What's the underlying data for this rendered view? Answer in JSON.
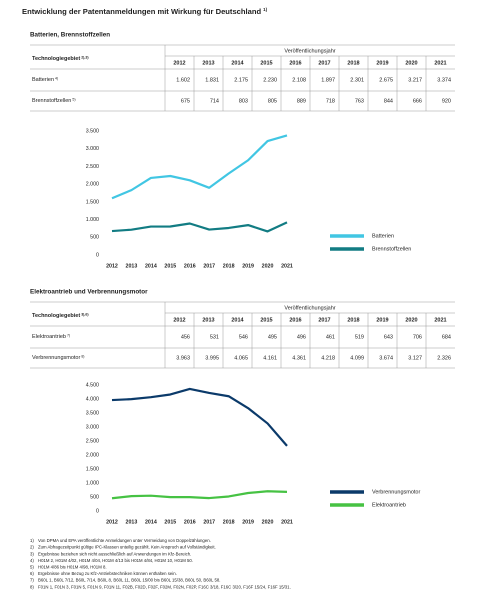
{
  "title": "Entwicklung der Patentanmeldungen mit Wirkung für Deutschland",
  "title_note": "1)",
  "sections": [
    {
      "heading": "Batterien, Brennstoffzellen",
      "table": {
        "label_header": "Technologiegebiet",
        "label_header_note": "2),3)",
        "year_header": "Veröffentlichungsjahr",
        "years": [
          "2012",
          "2013",
          "2014",
          "2015",
          "2016",
          "2017",
          "2018",
          "2019",
          "2020",
          "2021"
        ],
        "rows": [
          {
            "label": "Batterien",
            "note": "4)",
            "cells": [
              "1.602",
              "1.831",
              "2.175",
              "2.230",
              "2.108",
              "1.897",
              "2.301",
              "2.675",
              "3.217",
              "3.374"
            ]
          },
          {
            "label": "Brennstoffzellen",
            "note": "5)",
            "cells": [
              "675",
              "714",
              "803",
              "805",
              "889",
              "718",
              "763",
              "844",
              "666",
              "920"
            ]
          }
        ]
      }
    },
    {
      "heading": "Elektroantrieb und Verbrennungsmotor",
      "table": {
        "label_header": "Technologiegebiet",
        "label_header_note": "3),6)",
        "year_header": "Veröffentlichungsjahr",
        "years": [
          "2012",
          "2013",
          "2014",
          "2015",
          "2016",
          "2017",
          "2018",
          "2019",
          "2020",
          "2021"
        ],
        "rows": [
          {
            "label": "Elektroantrieb",
            "note": "7)",
            "cells": [
              "456",
              "531",
              "546",
              "495",
              "496",
              "461",
              "519",
              "643",
              "706",
              "684"
            ]
          },
          {
            "label": "Verbrennungsmotor",
            "note": "8)",
            "cells": [
              "3.963",
              "3.995",
              "4.065",
              "4.161",
              "4.361",
              "4.218",
              "4.099",
              "3.674",
              "3.127",
              "2.326"
            ]
          }
        ]
      }
    }
  ],
  "chart_data": [
    {
      "type": "line",
      "categories": [
        "2012",
        "2013",
        "2014",
        "2015",
        "2016",
        "2017",
        "2018",
        "2019",
        "2020",
        "2021"
      ],
      "ylim": [
        0,
        3500
      ],
      "yticks": [
        0,
        500,
        {
          "value": 1000,
          "label": "1.000"
        },
        {
          "value": 1500,
          "label": "1.500"
        },
        {
          "value": 2000,
          "label": "2.000"
        },
        {
          "value": 2500,
          "label": "2.500"
        },
        {
          "value": 3000,
          "label": "3.000"
        },
        {
          "value": 3500,
          "label": "3.500"
        }
      ],
      "grid": false,
      "legend": "right",
      "series": [
        {
          "name": "Batterien",
          "color": "#41c6e3",
          "values": [
            1602,
            1831,
            2175,
            2230,
            2108,
            1897,
            2301,
            2675,
            3217,
            3374
          ]
        },
        {
          "name": "Brennstoffzellen",
          "color": "#127c83",
          "values": [
            675,
            714,
            803,
            805,
            889,
            718,
            763,
            844,
            666,
            920
          ]
        }
      ]
    },
    {
      "type": "line",
      "categories": [
        "2012",
        "2013",
        "2014",
        "2015",
        "2016",
        "2017",
        "2018",
        "2019",
        "2020",
        "2021"
      ],
      "ylim": [
        0,
        4500
      ],
      "yticks": [
        0,
        500,
        {
          "value": 1000,
          "label": "1.000"
        },
        {
          "value": 1500,
          "label": "1.500"
        },
        {
          "value": 2000,
          "label": "2.000"
        },
        {
          "value": 2500,
          "label": "2.500"
        },
        {
          "value": 3000,
          "label": "3.000"
        },
        {
          "value": 3500,
          "label": "3.500"
        },
        {
          "value": 4000,
          "label": "4.000"
        },
        {
          "value": 4500,
          "label": "4.500"
        }
      ],
      "grid": false,
      "legend": "right",
      "series": [
        {
          "name": "Verbrennungsmotor",
          "color": "#0b3a6a",
          "values": [
            3963,
            3995,
            4065,
            4161,
            4361,
            4218,
            4099,
            3674,
            3127,
            2326
          ]
        },
        {
          "name": "Elektroantrieb",
          "color": "#46c243",
          "values": [
            456,
            531,
            546,
            495,
            496,
            461,
            519,
            643,
            706,
            684
          ]
        }
      ]
    }
  ],
  "footnotes": [
    {
      "mark": "1)",
      "text": "Von DPMA und EPA veröffentlichte Anmeldungen unter Vermeidung von Doppelzählungen."
    },
    {
      "mark": "2)",
      "text": "Zum Abfragezeitpunkt gültige IPC-Klassen unteilig gezählt. Kein Anspruch auf Vollständigkeit."
    },
    {
      "mark": "3)",
      "text": "Ergebnisse beziehen sich nicht ausschließlich auf Anwendungen im Kfz-Bereich."
    },
    {
      "mark": "4)",
      "text": "H01M 2, H01M 4/02, H01M 4/04, H01M 4/13 bis H01M 4/84, H01M 10, H01M 50."
    },
    {
      "mark": "5)",
      "text": "H01M 4/86 bis H01M 4/98, H01M 8."
    },
    {
      "mark": "6)",
      "text": "Ergebnisse ohne Bezug zu Kfz-Antriebstechniken können enthalten sein."
    },
    {
      "mark": "7)",
      "text": "B60L 1, B60L 7/12, B60L 7/14, B60L 8, B60L 11, B60L 15/00 bis B60L 15/38, B60L 50, B60L 58."
    },
    {
      "mark": "8)",
      "text": "F01N 1, F01N 3, F01N 5, F01N 9, F01N 11, F02B, F02D, F02F, F02M, F02N, F02P, F16C 3/18, F16C 3/20, F16F 15/24, F16F 15/31."
    }
  ]
}
